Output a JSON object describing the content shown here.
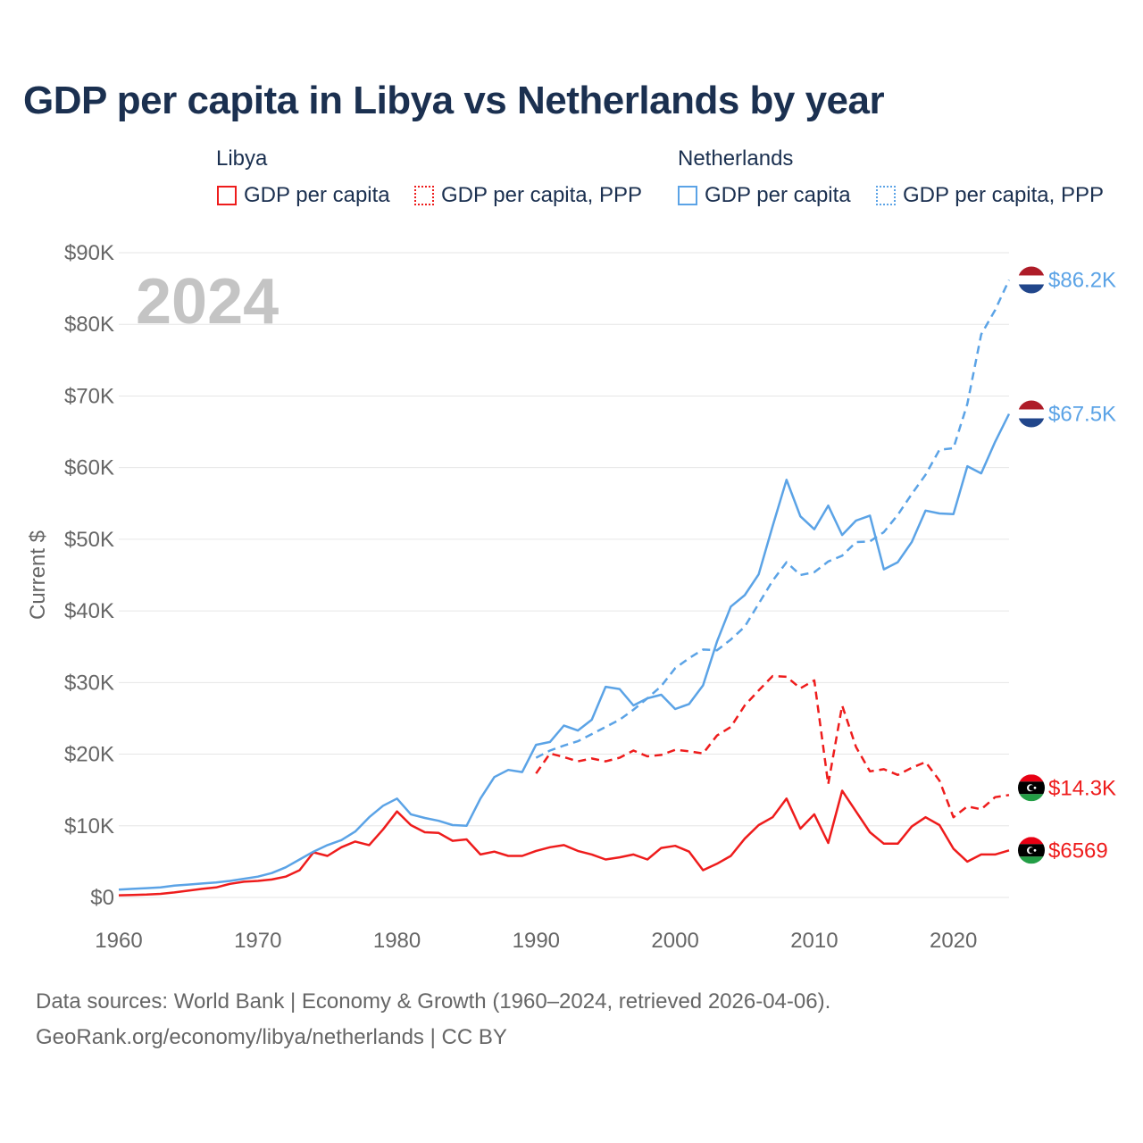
{
  "title": "GDP per capita in Libya vs Netherlands by year",
  "legend": {
    "libya": {
      "title": "Libya",
      "gdp": "GDP per capita",
      "ppp": "GDP per capita, PPP"
    },
    "netherlands": {
      "title": "Netherlands",
      "gdp": "GDP per capita",
      "ppp": "GDP per capita, PPP"
    }
  },
  "source": {
    "line1": "Data sources: World Bank | Economy & Growth (1960–2024, retrieved 2026-04-06).",
    "line2": "GeoRank.org/economy/libya/netherlands | CC BY"
  },
  "chart_data": {
    "type": "line",
    "year_label": "2024",
    "ylabel": "Current $",
    "xlim": [
      1960,
      2024
    ],
    "ylim": [
      0,
      90000
    ],
    "x_ticks": [
      1960,
      1970,
      1980,
      1990,
      2000,
      2010,
      2020
    ],
    "x_tick_labels": [
      "1960",
      "1970",
      "1980",
      "1990",
      "2000",
      "2010",
      "2020"
    ],
    "y_ticks": [
      0,
      10000,
      20000,
      30000,
      40000,
      50000,
      60000,
      70000,
      80000,
      90000
    ],
    "y_tick_labels": [
      "$0",
      "$10K",
      "$20K",
      "$30K",
      "$40K",
      "$50K",
      "$60K",
      "$70K",
      "$80K",
      "$90K"
    ],
    "colors": {
      "libya": "#ee1c1c",
      "netherlands": "#5ba3e6"
    },
    "series": [
      {
        "name": "Netherlands GDP per capita",
        "country": "netherlands",
        "dash": "solid",
        "end_label": "$67.5K",
        "start_year": 1960,
        "values": [
          1100,
          1200,
          1300,
          1400,
          1650,
          1800,
          1950,
          2100,
          2300,
          2600,
          2900,
          3400,
          4200,
          5300,
          6400,
          7300,
          8000,
          9200,
          11200,
          12800,
          13800,
          11600,
          11100,
          10700,
          10100,
          10000,
          13800,
          16800,
          17800,
          17500,
          21300,
          21700,
          24000,
          23300,
          24800,
          29400,
          29100,
          26800,
          27800,
          28300,
          26300,
          27000,
          29600,
          35700,
          40600,
          42200,
          45100,
          51800,
          58300,
          53200,
          51400,
          54700,
          50600,
          52600,
          53300,
          45800,
          46800,
          49600,
          54000,
          53600,
          53500,
          60200,
          59200,
          63600,
          67500
        ]
      },
      {
        "name": "Netherlands GDP per capita, PPP",
        "country": "netherlands",
        "dash": "dashed",
        "end_label": "$86.2K",
        "start_year": 1990,
        "values": [
          19500,
          20500,
          21200,
          21800,
          22800,
          23800,
          24800,
          26200,
          27800,
          29500,
          32000,
          33400,
          34600,
          34500,
          36000,
          37800,
          41000,
          44200,
          46800,
          45000,
          45400,
          46900,
          47700,
          49600,
          49700,
          51000,
          53400,
          56300,
          59000,
          62500,
          62700,
          68900,
          78600,
          82000,
          86200
        ]
      },
      {
        "name": "Libya GDP per capita",
        "country": "libya",
        "dash": "solid",
        "end_label": "$6569",
        "start_year": 1960,
        "values": [
          300,
          350,
          400,
          500,
          700,
          950,
          1200,
          1400,
          1900,
          2200,
          2300,
          2500,
          2900,
          3800,
          6300,
          5800,
          7000,
          7800,
          7300,
          9500,
          12000,
          10100,
          9100,
          9000,
          7900,
          8100,
          6000,
          6400,
          5800,
          5800,
          6500,
          7000,
          7300,
          6500,
          6000,
          5300,
          5600,
          6000,
          5300,
          6900,
          7200,
          6400,
          3800,
          4700,
          5800,
          8200,
          10100,
          11200,
          13800,
          9600,
          11600,
          7600,
          14900,
          12000,
          9100,
          7500,
          7500,
          9900,
          11200,
          10100,
          6800,
          5000,
          6000,
          6000,
          6569
        ]
      },
      {
        "name": "Libya GDP per capita, PPP",
        "country": "libya",
        "dash": "dashed",
        "end_label": "$14.3K",
        "start_year": 1990,
        "values": [
          17300,
          20100,
          19600,
          19000,
          19400,
          19000,
          19500,
          20500,
          19700,
          19900,
          20600,
          20400,
          20100,
          22600,
          23800,
          26800,
          28900,
          30900,
          30800,
          29200,
          30300,
          15800,
          26800,
          21000,
          17600,
          17900,
          17100,
          18100,
          18900,
          16300,
          11200,
          12700,
          12300,
          14000,
          14300
        ]
      }
    ]
  }
}
